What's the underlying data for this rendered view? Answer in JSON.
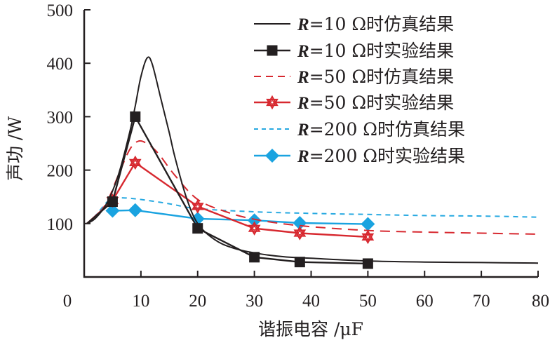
{
  "chart_data": {
    "type": "line",
    "title": "",
    "xlabel": "谐振电容 /μF",
    "ylabel": "声功 /W",
    "xlim": [
      0,
      80
    ],
    "ylim": [
      0,
      500
    ],
    "xticks": [
      0,
      10,
      20,
      30,
      40,
      50,
      60,
      70,
      80
    ],
    "yticks": [
      100,
      200,
      300,
      400,
      500
    ],
    "xtick_labels": [
      "0",
      "10",
      "20",
      "30",
      "40",
      "50",
      "60",
      "70",
      "80"
    ],
    "ytick_labels": [
      "100",
      "200",
      "300",
      "400",
      "500"
    ],
    "grid": false,
    "legend_position": "top-right",
    "series": [
      {
        "name": "R=10 Ω时仿真结果",
        "legend_r": "R",
        "legend_rest": "=10 Ω时仿真结果",
        "kind": "simulation",
        "color": "#231f20",
        "dash": "solid",
        "marker": "none",
        "x": [
          0.5,
          2,
          4,
          6,
          8,
          9,
          10,
          11.1,
          12,
          13.6,
          15,
          16,
          18,
          20,
          23,
          26,
          30,
          35,
          40,
          50,
          60,
          70,
          80
        ],
        "y": [
          100,
          110,
          138,
          190,
          270,
          320,
          375,
          410,
          398,
          330,
          270,
          224,
          149,
          100,
          70,
          55,
          45,
          38,
          35,
          30,
          28,
          27,
          26
        ]
      },
      {
        "name": "R=10 Ω时实验结果",
        "legend_r": "R",
        "legend_rest": "=10 Ω时实验结果",
        "kind": "experiment",
        "color": "#231f20",
        "dash": "solid",
        "marker": "square",
        "x": [
          0.5,
          5,
          9,
          20,
          30,
          38,
          50
        ],
        "y": [
          100,
          141,
          300,
          91,
          37,
          28,
          25
        ]
      },
      {
        "name": "R=50 Ω时仿真结果",
        "legend_r": "R",
        "legend_rest": "=50 Ω时仿真结果",
        "kind": "simulation",
        "color": "#d7282f",
        "dash": "dashed",
        "marker": "none",
        "x": [
          0.5,
          2,
          4,
          6,
          8,
          9.5,
          11,
          13,
          16,
          20,
          25,
          30,
          38,
          50,
          60,
          70,
          80
        ],
        "y": [
          100,
          112,
          140,
          190,
          238,
          254,
          250,
          232,
          190,
          145,
          122,
          108,
          96,
          87,
          84,
          82,
          80
        ]
      },
      {
        "name": "R=50 Ω时实验结果",
        "legend_r": "R",
        "legend_rest": "=50 Ω时实验结果",
        "kind": "experiment",
        "color": "#d7282f",
        "dash": "solid",
        "marker": "hexagram",
        "x": [
          0.5,
          5,
          9,
          20,
          30,
          38,
          50
        ],
        "y": [
          100,
          143,
          214,
          132,
          91,
          82,
          75
        ]
      },
      {
        "name": "R=200 Ω时仿真结果",
        "legend_r": "R",
        "legend_rest": "=200 Ω时仿真结果",
        "kind": "simulation",
        "color": "#27a9e1",
        "dash": "dotted",
        "marker": "none",
        "x": [
          0.5,
          2,
          4,
          5,
          7,
          10,
          15,
          20,
          30,
          40,
          50,
          60,
          70,
          80
        ],
        "y": [
          100,
          115,
          140,
          147,
          148,
          145,
          137,
          128,
          122,
          119,
          117,
          115,
          114,
          112
        ]
      },
      {
        "name": "R=200 Ω时实验结果",
        "legend_r": "R",
        "legend_rest": "=200 Ω时实验结果",
        "kind": "experiment",
        "color": "#1aa3e0",
        "dash": "solid",
        "marker": "diamond",
        "x": [
          5,
          9,
          20,
          30,
          38,
          50
        ],
        "y": [
          124,
          125,
          109,
          106,
          101,
          99
        ]
      }
    ]
  }
}
